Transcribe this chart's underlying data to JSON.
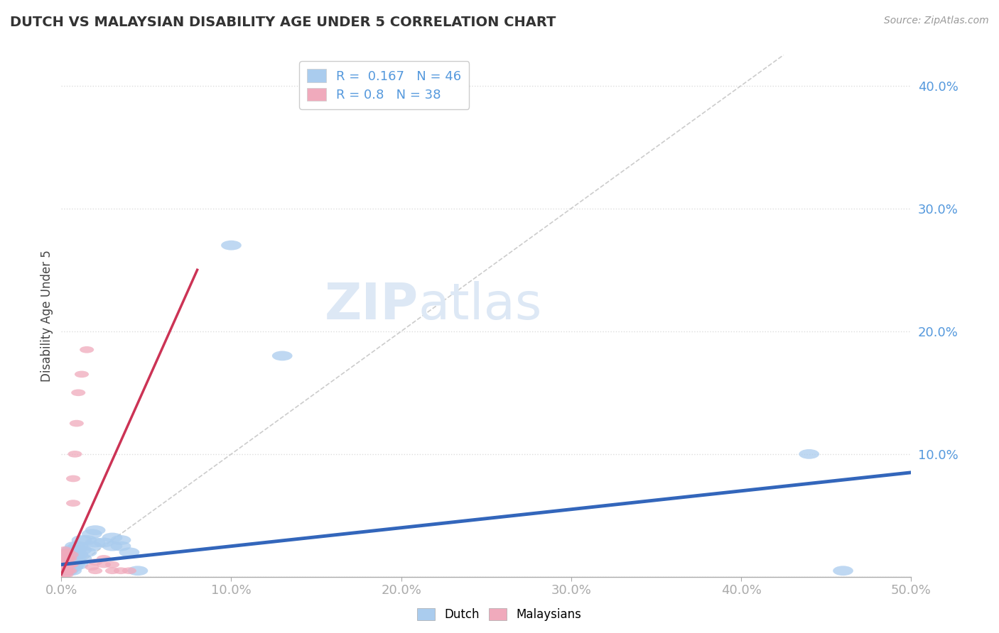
{
  "title": "DUTCH VS MALAYSIAN DISABILITY AGE UNDER 5 CORRELATION CHART",
  "source": "Source: ZipAtlas.com",
  "ylabel": "Disability Age Under 5",
  "xlim": [
    0,
    0.5
  ],
  "ylim": [
    0,
    0.425
  ],
  "ytick_vals": [
    0.0,
    0.1,
    0.2,
    0.3,
    0.4
  ],
  "ytick_labels": [
    "",
    "10.0%",
    "20.0%",
    "30.0%",
    "40.0%"
  ],
  "xtick_vals": [
    0.0,
    0.1,
    0.2,
    0.3,
    0.4,
    0.5
  ],
  "xtick_labels": [
    "0.0%",
    "10.0%",
    "20.0%",
    "30.0%",
    "40.0%",
    "50.0%"
  ],
  "dutch_color": "#aaccee",
  "malaysian_color": "#f0aabc",
  "dutch_line_color": "#3366bb",
  "malaysian_line_color": "#cc3355",
  "diagonal_color": "#cccccc",
  "R_dutch": 0.167,
  "N_dutch": 46,
  "R_malaysian": 0.8,
  "N_malaysian": 38,
  "tick_color": "#5599dd",
  "dutch_points": [
    [
      0.002,
      0.01
    ],
    [
      0.003,
      0.005
    ],
    [
      0.003,
      0.012
    ],
    [
      0.003,
      0.015
    ],
    [
      0.004,
      0.005
    ],
    [
      0.004,
      0.008
    ],
    [
      0.004,
      0.015
    ],
    [
      0.004,
      0.018
    ],
    [
      0.005,
      0.01
    ],
    [
      0.005,
      0.015
    ],
    [
      0.005,
      0.02
    ],
    [
      0.006,
      0.005
    ],
    [
      0.006,
      0.012
    ],
    [
      0.006,
      0.018
    ],
    [
      0.006,
      0.022
    ],
    [
      0.007,
      0.008
    ],
    [
      0.007,
      0.015
    ],
    [
      0.007,
      0.02
    ],
    [
      0.008,
      0.01
    ],
    [
      0.008,
      0.018
    ],
    [
      0.008,
      0.025
    ],
    [
      0.009,
      0.015
    ],
    [
      0.009,
      0.022
    ],
    [
      0.01,
      0.01
    ],
    [
      0.01,
      0.018
    ],
    [
      0.01,
      0.025
    ],
    [
      0.012,
      0.015
    ],
    [
      0.012,
      0.022
    ],
    [
      0.012,
      0.03
    ],
    [
      0.015,
      0.02
    ],
    [
      0.015,
      0.03
    ],
    [
      0.018,
      0.025
    ],
    [
      0.018,
      0.035
    ],
    [
      0.02,
      0.028
    ],
    [
      0.02,
      0.038
    ],
    [
      0.025,
      0.028
    ],
    [
      0.03,
      0.025
    ],
    [
      0.03,
      0.032
    ],
    [
      0.035,
      0.025
    ],
    [
      0.035,
      0.03
    ],
    [
      0.04,
      0.02
    ],
    [
      0.045,
      0.005
    ],
    [
      0.1,
      0.27
    ],
    [
      0.13,
      0.18
    ],
    [
      0.44,
      0.1
    ],
    [
      0.46,
      0.005
    ]
  ],
  "malaysian_points": [
    [
      0.002,
      0.002
    ],
    [
      0.002,
      0.005
    ],
    [
      0.002,
      0.008
    ],
    [
      0.002,
      0.01
    ],
    [
      0.002,
      0.015
    ],
    [
      0.002,
      0.02
    ],
    [
      0.002,
      0.022
    ],
    [
      0.003,
      0.002
    ],
    [
      0.003,
      0.005
    ],
    [
      0.003,
      0.008
    ],
    [
      0.003,
      0.012
    ],
    [
      0.003,
      0.015
    ],
    [
      0.003,
      0.018
    ],
    [
      0.004,
      0.005
    ],
    [
      0.004,
      0.01
    ],
    [
      0.004,
      0.015
    ],
    [
      0.004,
      0.02
    ],
    [
      0.005,
      0.005
    ],
    [
      0.005,
      0.01
    ],
    [
      0.005,
      0.015
    ],
    [
      0.006,
      0.01
    ],
    [
      0.006,
      0.018
    ],
    [
      0.007,
      0.06
    ],
    [
      0.007,
      0.08
    ],
    [
      0.008,
      0.1
    ],
    [
      0.009,
      0.125
    ],
    [
      0.01,
      0.15
    ],
    [
      0.012,
      0.165
    ],
    [
      0.015,
      0.185
    ],
    [
      0.018,
      0.008
    ],
    [
      0.02,
      0.005
    ],
    [
      0.02,
      0.012
    ],
    [
      0.025,
      0.01
    ],
    [
      0.025,
      0.015
    ],
    [
      0.03,
      0.005
    ],
    [
      0.03,
      0.01
    ],
    [
      0.035,
      0.005
    ],
    [
      0.04,
      0.005
    ]
  ],
  "dutch_regline": [
    0.0,
    0.5,
    0.01,
    0.085
  ],
  "malaysian_regline": [
    0.0,
    0.08,
    0.002,
    0.25
  ]
}
